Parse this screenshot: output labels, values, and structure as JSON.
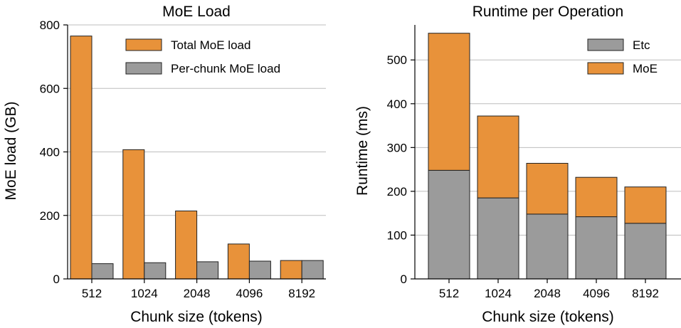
{
  "colors": {
    "orange": "#e8923a",
    "gray": "#9b9b9b",
    "edge": "#222222",
    "grid": "#bdbdbd"
  },
  "chart_data": [
    {
      "type": "bar",
      "title": "MoE Load",
      "xlabel": "Chunk size (tokens)",
      "ylabel": "MoE load (GB)",
      "categories": [
        "512",
        "1024",
        "2048",
        "4096",
        "8192"
      ],
      "ylim": [
        0,
        800
      ],
      "yticks": [
        0,
        200,
        400,
        600,
        800
      ],
      "grid": "horizontal",
      "legend_position": "top-right",
      "series": [
        {
          "name": "Total MoE load",
          "color": "#e8923a",
          "values": [
            765,
            407,
            214,
            110,
            58
          ]
        },
        {
          "name": "Per-chunk MoE load",
          "color": "#9b9b9b",
          "values": [
            48,
            51,
            54,
            56,
            58
          ]
        }
      ]
    },
    {
      "type": "bar",
      "stacked": true,
      "title": "Runtime per Operation",
      "xlabel": "Chunk size (tokens)",
      "ylabel": "Runtime (ms)",
      "categories": [
        "512",
        "1024",
        "2048",
        "4096",
        "8192"
      ],
      "ylim": [
        0,
        580
      ],
      "yticks": [
        0,
        100,
        200,
        300,
        400,
        500
      ],
      "grid": "horizontal",
      "legend_position": "top-right",
      "series": [
        {
          "name": "Etc",
          "color": "#9b9b9b",
          "values": [
            248,
            185,
            148,
            142,
            127
          ]
        },
        {
          "name": "MoE",
          "color": "#e8923a",
          "values": [
            313,
            187,
            116,
            90,
            83
          ]
        }
      ]
    }
  ]
}
